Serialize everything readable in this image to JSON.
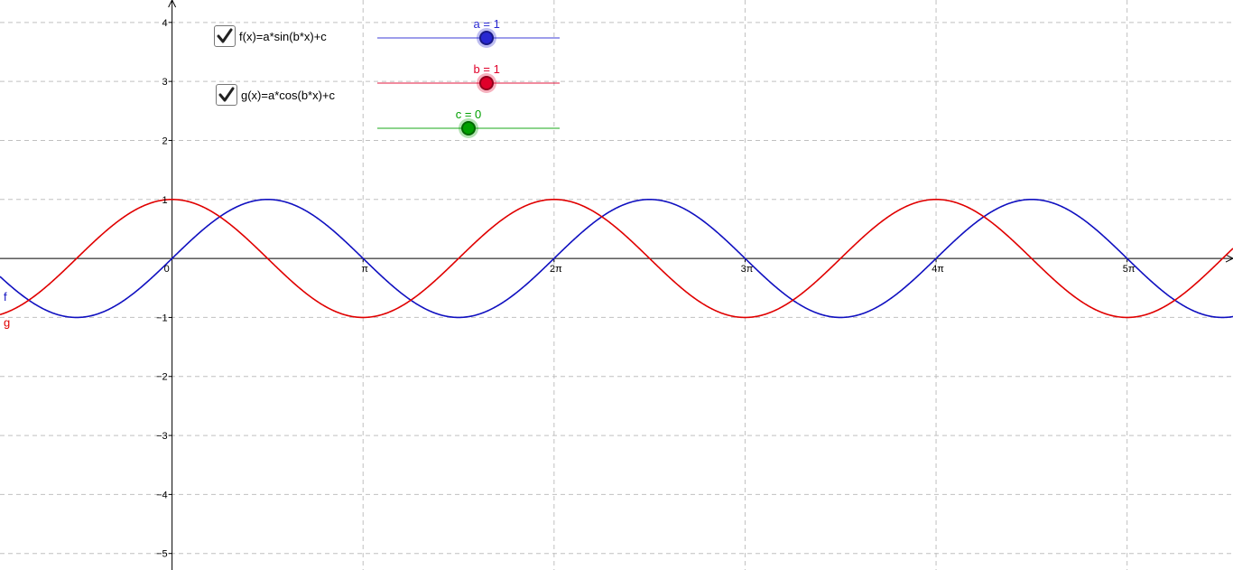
{
  "checkboxes": [
    {
      "label": "f(x)=a*sin(b*x)+c",
      "checked": true
    },
    {
      "label": "g(x)=a*cos(b*x)+c",
      "checked": true
    }
  ],
  "sliders": [
    {
      "label": "a = 1",
      "value": 1,
      "min": -5,
      "max": 5,
      "color": "#2828d2"
    },
    {
      "label": "b = 1",
      "value": 1,
      "min": -5,
      "max": 5,
      "color": "#e0002a"
    },
    {
      "label": "c = 0",
      "value": 0,
      "min": -5,
      "max": 5,
      "color": "#00a000"
    }
  ],
  "colors": {
    "f": "#1010c0",
    "g": "#e00000",
    "grid": "#c0c0c0",
    "axis": "#000000"
  },
  "chart_data": {
    "type": "line",
    "xlim": [
      -2.83,
      17.45
    ],
    "ylim": [
      -5.28,
      4.38
    ],
    "x_ticks": [
      {
        "value": 3.14159,
        "label": "π"
      },
      {
        "value": 6.28319,
        "label": "2π"
      },
      {
        "value": 9.42478,
        "label": "3π"
      },
      {
        "value": 12.56637,
        "label": "4π"
      },
      {
        "value": 15.70796,
        "label": "5π"
      }
    ],
    "origin_label": "0",
    "y_ticks": [
      {
        "value": 4,
        "label": "4"
      },
      {
        "value": 3,
        "label": "3"
      },
      {
        "value": 2,
        "label": "2"
      },
      {
        "value": 1,
        "label": "1"
      },
      {
        "value": -1,
        "label": "−1"
      },
      {
        "value": -2,
        "label": "−2"
      },
      {
        "value": -3,
        "label": "−3"
      },
      {
        "value": -4,
        "label": "−4"
      },
      {
        "value": -5,
        "label": "−5"
      }
    ],
    "series": [
      {
        "name": "f",
        "function": "a*sin(b*x)+c"
      },
      {
        "name": "g",
        "function": "a*cos(b*x)+c"
      }
    ],
    "grid": true
  }
}
